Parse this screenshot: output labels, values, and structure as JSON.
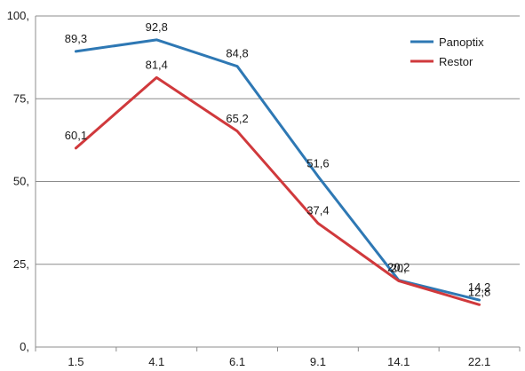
{
  "chart_data": {
    "type": "line",
    "title": "",
    "xlabel": "",
    "ylabel": "",
    "categories": [
      "1.5",
      "4.1",
      "6.1",
      "9.1",
      "14.1",
      "22.1"
    ],
    "ylim": [
      0,
      100
    ],
    "yticks": [
      "0,",
      "25,",
      "50,",
      "75,",
      "100,"
    ],
    "grid": true,
    "legend": "top-right",
    "series": [
      {
        "name": "Panoptix",
        "color": "#2e78b4",
        "values": [
          89.3,
          92.8,
          84.8,
          51.6,
          20.2,
          14.2
        ],
        "labels": [
          "89,3",
          "92,8",
          "84,8",
          "51,6",
          "20,2",
          "14,2"
        ]
      },
      {
        "name": "Restor",
        "color": "#d0393c",
        "values": [
          60.1,
          81.4,
          65.2,
          37.4,
          20.0,
          12.8
        ],
        "labels": [
          "60,1",
          "81,4",
          "65,2",
          "37,4",
          "20,",
          "12,8"
        ]
      }
    ]
  }
}
